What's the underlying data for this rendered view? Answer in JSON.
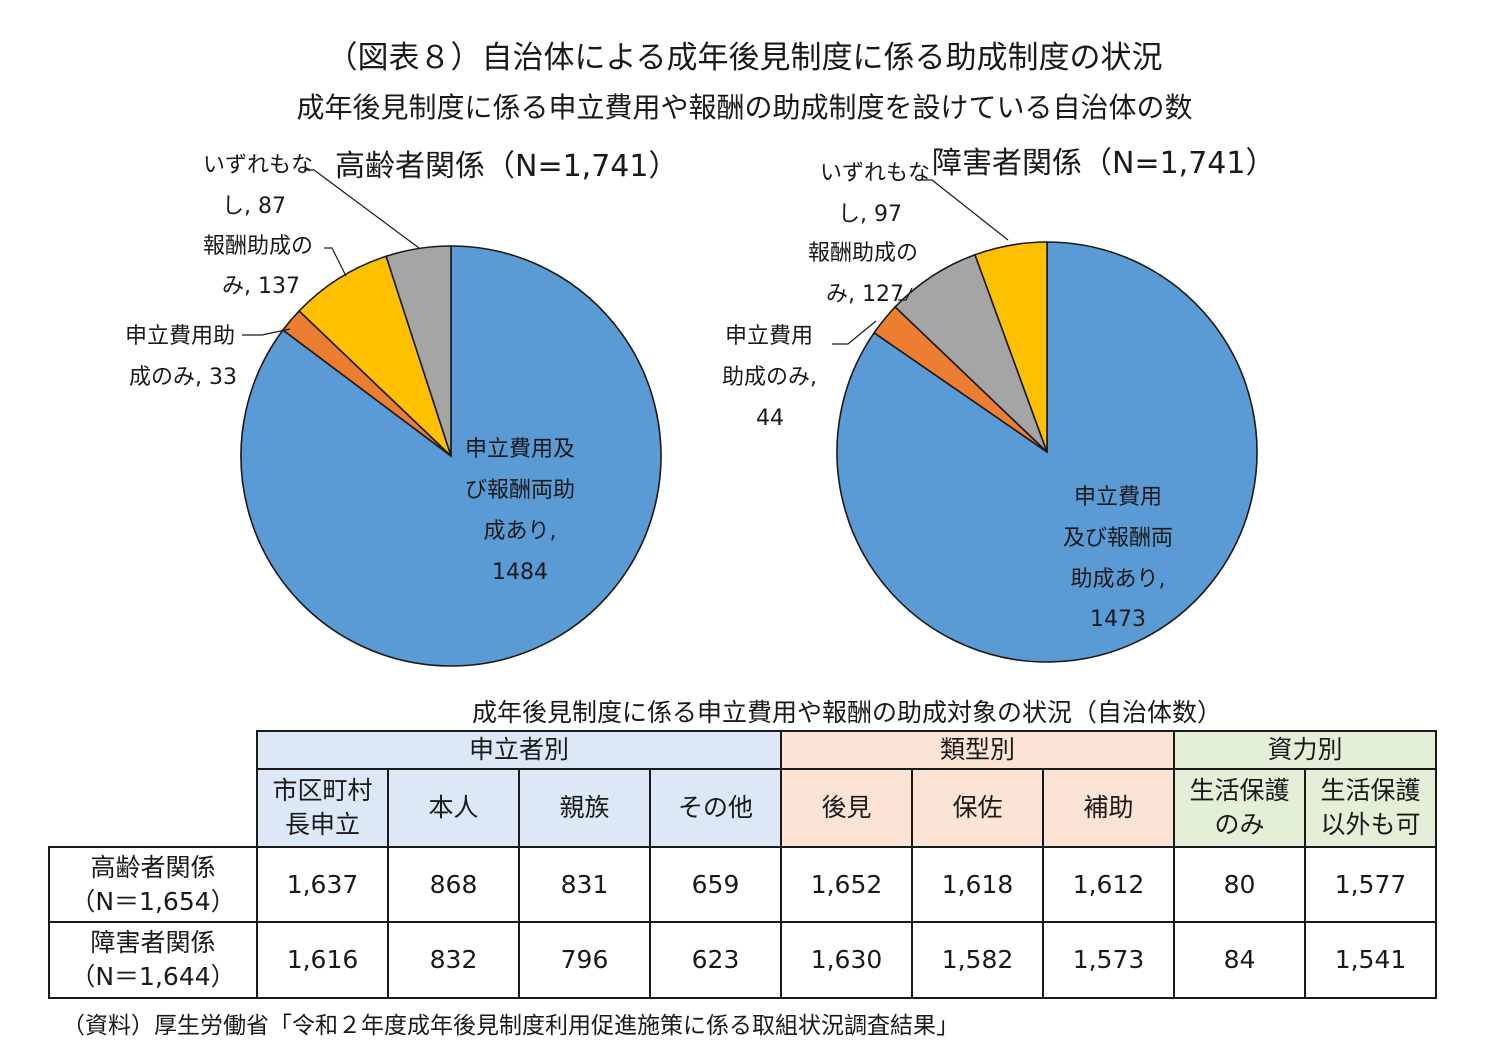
{
  "figure": {
    "title": "（図表８）自治体による成年後見制度に係る助成制度の状況",
    "subtitle": "成年後見制度に係る申立費用や報酬の助成制度を設けている自治体の数"
  },
  "chart_data": [
    {
      "type": "pie",
      "title": "高齢者関係（N=1,741）",
      "slices": [
        {
          "label": [
            "申立費用及",
            "び報酬両助",
            "成あり,"
          ],
          "value": 1484,
          "value_text": "1484",
          "color": "#5b9bd5"
        },
        {
          "label": [
            "申立費用助",
            "成のみ, 33"
          ],
          "value": 33,
          "value_text": "",
          "color": "#ed7d31"
        },
        {
          "label": [
            "報酬助成の",
            "み, 137"
          ],
          "value": 137,
          "value_text": "",
          "color": "#ffc000"
        },
        {
          "label": [
            "いずれもな",
            "し, 87"
          ],
          "value": 87,
          "value_text": "",
          "color": "#a5a5a5"
        }
      ]
    },
    {
      "type": "pie",
      "title": "障害者関係（N=1,741）",
      "slices": [
        {
          "label": [
            "申立費用",
            "及び報酬両",
            "助成あり,"
          ],
          "value": 1473,
          "value_text": "1473",
          "color": "#5b9bd5"
        },
        {
          "label": [
            "申立費用",
            "助成のみ,"
          ],
          "value": 44,
          "value_text": "44",
          "color": "#ed7d31"
        },
        {
          "label": [
            "報酬助成の",
            "み, 127"
          ],
          "value": 127,
          "value_text": "",
          "color": "#a5a5a5"
        },
        {
          "label": [
            "いずれもな",
            "し, 97"
          ],
          "value": 97,
          "value_text": "",
          "color": "#ffc000"
        }
      ]
    }
  ],
  "table": {
    "title": "成年後見制度に係る申立費用や報酬の助成対象の状況（自治体数）",
    "groups": [
      "申立者別",
      "類型別",
      "資力別"
    ],
    "columns": [
      [
        "市区町村",
        "長申立"
      ],
      [
        "本人"
      ],
      [
        "親族"
      ],
      [
        "その他"
      ],
      [
        "後見"
      ],
      [
        "保佐"
      ],
      [
        "補助"
      ],
      [
        "生活保護",
        "のみ"
      ],
      [
        "生活保護",
        "以外も可"
      ]
    ],
    "rows": [
      {
        "label": [
          "高齢者関係",
          "（N＝1,654）"
        ],
        "values": [
          "1,637",
          "868",
          "831",
          "659",
          "1,652",
          "1,618",
          "1,612",
          "80",
          "1,577"
        ]
      },
      {
        "label": [
          "障害者関係",
          "（N＝1,644）"
        ],
        "values": [
          "1,616",
          "832",
          "796",
          "623",
          "1,630",
          "1,582",
          "1,573",
          "84",
          "1,541"
        ]
      }
    ]
  },
  "source": "（資料）厚生労働省「令和２年度成年後見制度利用促進施策に係る取組状況調査結果」"
}
